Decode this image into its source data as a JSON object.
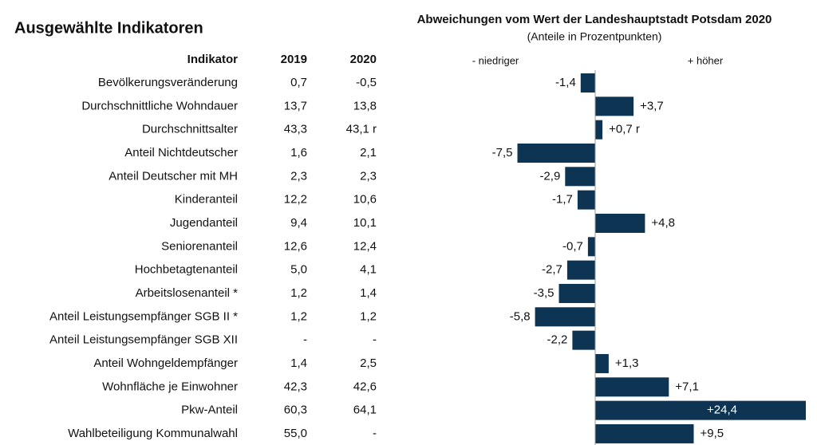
{
  "title": "Ausgewählte Indikatoren",
  "table": {
    "header": [
      "Indikator",
      "2019",
      "2020"
    ],
    "rows": [
      [
        "Bevölkerungsveränderung",
        "0,7",
        "-0,5"
      ],
      [
        "Durchschnittliche Wohndauer",
        "13,7",
        "13,8"
      ],
      [
        "Durchschnittsalter",
        "43,3",
        "43,1 r"
      ],
      [
        "Anteil Nichtdeutscher",
        "1,6",
        "2,1"
      ],
      [
        "Anteil Deutscher mit MH",
        "2,3",
        "2,3"
      ],
      [
        "Kinderanteil",
        "12,2",
        "10,6"
      ],
      [
        "Jugendanteil",
        "9,4",
        "10,1"
      ],
      [
        "Seniorenanteil",
        "12,6",
        "12,4"
      ],
      [
        "Hochbetagtenanteil",
        "5,0",
        "4,1"
      ],
      [
        "Arbeitslosenanteil *",
        "1,2",
        "1,4"
      ],
      [
        "Anteil Leistungsempfänger SGB II *",
        "1,2",
        "1,2"
      ],
      [
        "Anteil Leistungsempfänger SGB XII",
        "-",
        "-"
      ],
      [
        "Anteil Wohngeldempfänger",
        "1,4",
        "2,5"
      ],
      [
        "Wohnfläche je Einwohner",
        "42,3",
        "42,6"
      ],
      [
        "Pkw-Anteil",
        "60,3",
        "64,1"
      ],
      [
        "Wahlbeteiligung Kommunalwahl",
        "55,0",
        "-"
      ]
    ]
  },
  "chart_data": {
    "type": "bar",
    "orientation": "horizontal",
    "title": "Abweichungen vom Wert der Landeshauptstadt Potsdam 2020",
    "subtitle": "(Anteile in Prozentpunkten)",
    "left_label": "- niedriger",
    "right_label": "+ höher",
    "values": [
      -1.4,
      3.7,
      0.7,
      -7.5,
      -2.9,
      -1.7,
      4.8,
      -0.7,
      -2.7,
      -3.5,
      -5.8,
      -2.2,
      1.3,
      7.1,
      24.4,
      9.5
    ],
    "value_labels": [
      "-1,4",
      "+3,7",
      "+0,7 r",
      "-7,5",
      "-2,9",
      "-1,7",
      "+4,8",
      "-0,7",
      "-2,7",
      "-3,5",
      "-5,8",
      "-2,2",
      "+1,3",
      "+7,1",
      "+24,4",
      "+9,5"
    ],
    "xlim": [
      -10,
      20
    ],
    "color": "#0d3453"
  }
}
